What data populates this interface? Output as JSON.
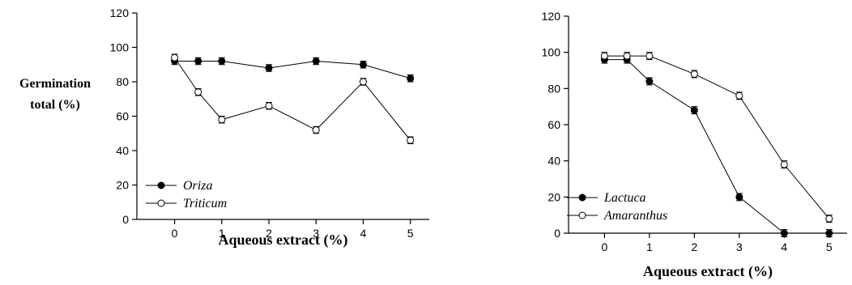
{
  "chart_data": [
    {
      "type": "line",
      "title": "",
      "ylabel_lines": [
        "Germination",
        "total (%)"
      ],
      "xlabel": "Aqueous extract (%)",
      "xlim": [
        -0.8,
        5.4
      ],
      "ylim": [
        0,
        120
      ],
      "xticks": [
        0,
        1,
        2,
        3,
        4,
        5
      ],
      "yticks": [
        0,
        20,
        40,
        60,
        80,
        100,
        120
      ],
      "legend_position": "bottom-left",
      "grid": false,
      "x": [
        0,
        0.5,
        1,
        2,
        3,
        4,
        5
      ],
      "series": [
        {
          "name": "Oriza",
          "marker": "filled-circle",
          "values": [
            92,
            92,
            92,
            88,
            92,
            90,
            82
          ],
          "errors": [
            2,
            2,
            2,
            2,
            2,
            2,
            2
          ]
        },
        {
          "name": "Triticum",
          "marker": "open-circle",
          "values": [
            94,
            74,
            58,
            66,
            52,
            80,
            46
          ],
          "errors": [
            2,
            2,
            2,
            2,
            2,
            2,
            2
          ]
        }
      ]
    },
    {
      "type": "line",
      "title": "",
      "ylabel_lines": [],
      "xlabel": "Aqueous extract (%)",
      "xlim": [
        -0.8,
        5.4
      ],
      "ylim": [
        0,
        120
      ],
      "xticks": [
        0,
        1,
        2,
        3,
        4,
        5
      ],
      "yticks": [
        0,
        20,
        40,
        60,
        80,
        100,
        120
      ],
      "legend_position": "bottom-left",
      "grid": false,
      "x": [
        0,
        0.5,
        1,
        2,
        3,
        4,
        5
      ],
      "series": [
        {
          "name": "Lactuca",
          "marker": "filled-circle",
          "values": [
            96,
            96,
            84,
            68,
            20,
            0,
            0
          ],
          "errors": [
            2,
            2,
            2,
            2,
            2,
            2,
            2
          ]
        },
        {
          "name": "Amaranthus",
          "marker": "open-circle",
          "values": [
            98,
            98,
            98,
            88,
            76,
            38,
            8
          ],
          "errors": [
            2,
            2,
            2,
            2,
            2,
            2,
            2
          ]
        }
      ]
    }
  ]
}
